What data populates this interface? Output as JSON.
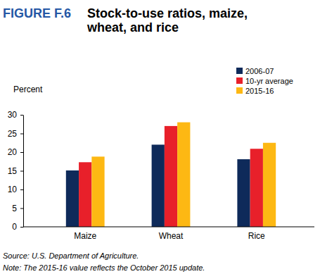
{
  "chart_data": {
    "type": "bar",
    "figure_label": "FIGURE F.6",
    "title": "Stock-to-use ratios, maize, wheat, and rice",
    "y_label": "Percent",
    "categories": [
      "Maize",
      "Wheat",
      "Rice"
    ],
    "series": [
      {
        "name": "2006-07",
        "color": "#0e2a5a",
        "values": [
          15.1,
          22.0,
          18.1
        ]
      },
      {
        "name": "10-yr average",
        "color": "#e8202a",
        "values": [
          17.3,
          27.0,
          20.9
        ]
      },
      {
        "name": "2015-16",
        "color": "#fdb813",
        "values": [
          18.8,
          28.0,
          22.5
        ]
      }
    ],
    "ylim": [
      0,
      30
    ],
    "yticks": [
      0,
      5,
      10,
      15,
      20,
      25,
      30
    ],
    "grid": false,
    "legend": "top-right",
    "source": "Source: U.S. Department of Agriculture.",
    "note": "Note: The 2015-16 value reflects the October 2015 update."
  }
}
